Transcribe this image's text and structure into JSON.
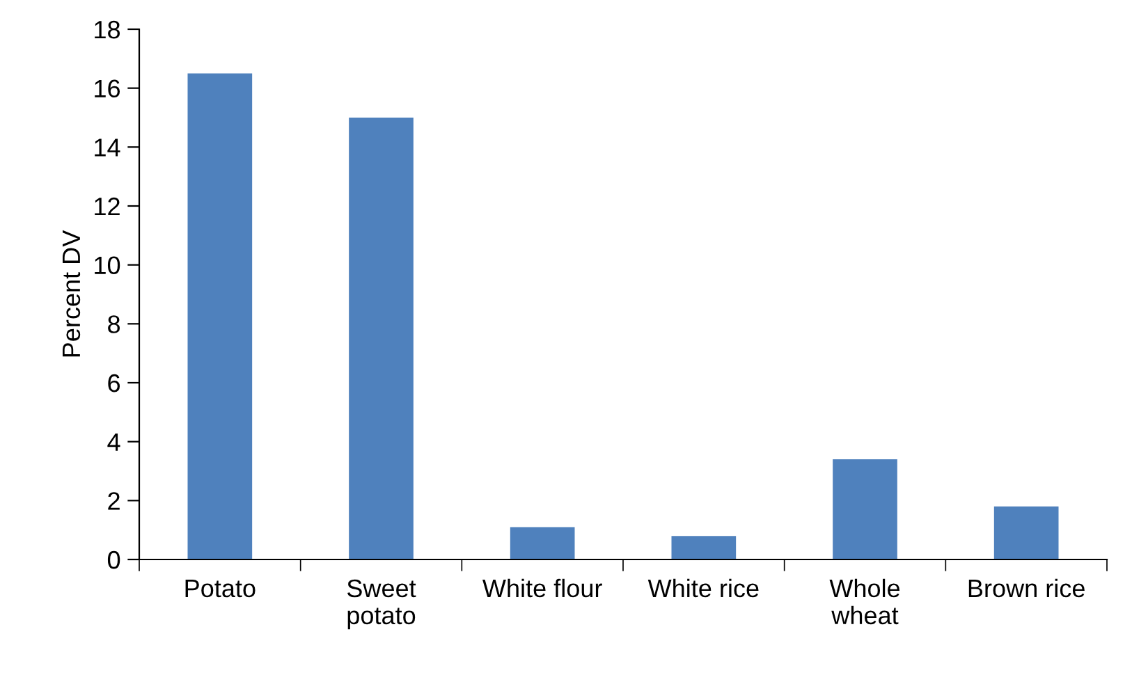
{
  "chart_data": {
    "type": "bar",
    "ylabel": "Percent DV",
    "categories": [
      "Potato",
      "Sweet\npotato",
      "White flour",
      "White rice",
      "Whole\nwheat",
      "Brown rice"
    ],
    "values": [
      16.5,
      15.0,
      1.1,
      0.8,
      3.4,
      1.8
    ],
    "color": "#4f81bd",
    "ylim": [
      0,
      18
    ],
    "yticks": [
      0,
      2,
      4,
      6,
      8,
      10,
      12,
      14,
      16,
      18
    ],
    "grid": false
  }
}
